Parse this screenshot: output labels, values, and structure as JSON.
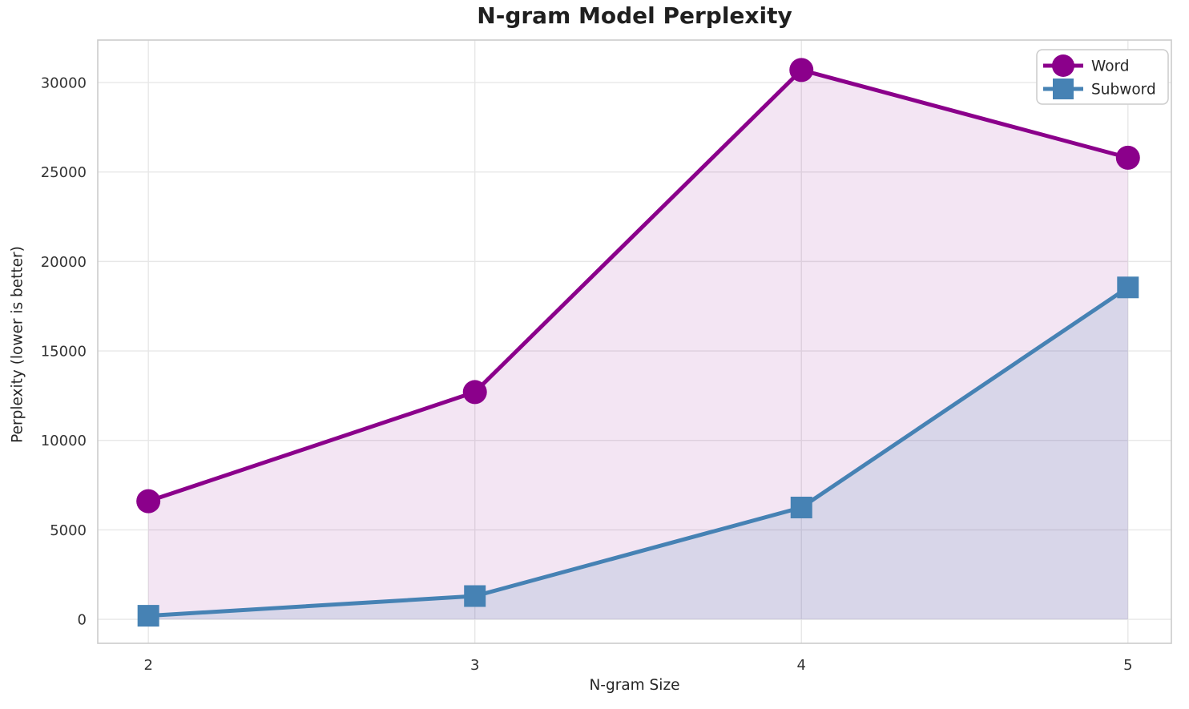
{
  "chart_data": {
    "type": "line",
    "title": "N-gram Model Perplexity",
    "xlabel": "N-gram Size",
    "ylabel": "Perplexity (lower is better)",
    "x": [
      2,
      3,
      4,
      5
    ],
    "xticks": [
      2,
      3,
      4,
      5
    ],
    "yticks": [
      0,
      5000,
      10000,
      15000,
      20000,
      25000,
      30000
    ],
    "xlim": [
      1.845,
      5.133
    ],
    "ylim": [
      -1340,
      32375
    ],
    "grid": true,
    "legend_position": "top-right",
    "series": [
      {
        "name": "Word",
        "marker": "circle",
        "color": "#8B008B",
        "fill_opacity": 0.1,
        "values": [
          6600,
          12700,
          30700,
          25800
        ]
      },
      {
        "name": "Subword",
        "marker": "square",
        "color": "#4682B4",
        "fill_opacity": 0.15,
        "values": [
          200,
          1300,
          6250,
          18550
        ]
      }
    ]
  },
  "style": {
    "grid_color": "#e7e7e7",
    "spine_color": "#cccccc",
    "text_color": "#262626",
    "tick_color": "#333333",
    "legend_bg": "#ffffff",
    "legend_border": "#cccccc",
    "line_width": 5
  }
}
